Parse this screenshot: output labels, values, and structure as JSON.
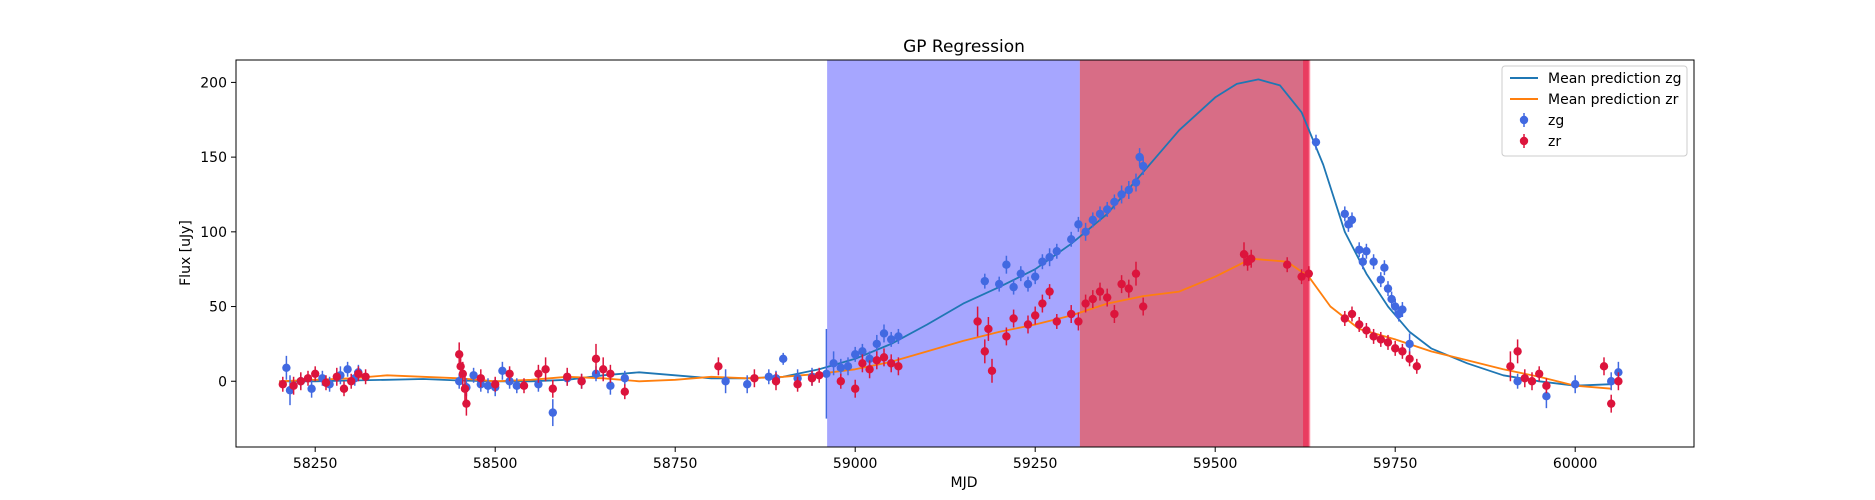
{
  "chart_data": {
    "type": "scatter",
    "title": "GP Regression",
    "xlabel": "MJD",
    "ylabel": "Flux [uJy]",
    "xlim": [
      58140,
      60165
    ],
    "ylim": [
      -44,
      215
    ],
    "xticks": [
      58250,
      58500,
      58750,
      59000,
      59250,
      59500,
      59750,
      60000
    ],
    "yticks": [
      0,
      50,
      100,
      150,
      200
    ],
    "grid": false,
    "legend_position": "top-right",
    "shaded_regions": [
      {
        "x0": 58961,
        "x1": 59312,
        "color": "#0000ff",
        "opacity": 0.35
      },
      {
        "x0": 59312,
        "x1": 59630,
        "color": "#c0143c",
        "opacity": 0.62
      },
      {
        "x0": 59622,
        "x1": 59632,
        "color": "#ff0033",
        "opacity": 0.45
      }
    ],
    "lines": [
      {
        "name": "Mean prediction zg",
        "color": "#1f77b4",
        "x": [
          58200,
          58250,
          58300,
          58350,
          58400,
          58450,
          58500,
          58550,
          58600,
          58650,
          58700,
          58750,
          58800,
          58850,
          58900,
          58950,
          59000,
          59050,
          59100,
          59150,
          59200,
          59250,
          59300,
          59350,
          59400,
          59450,
          59500,
          59530,
          59560,
          59590,
          59620,
          59650,
          59680,
          59710,
          59740,
          59770,
          59800,
          59850,
          59900,
          59950,
          60000,
          60050
        ],
        "y": [
          0,
          0,
          0.5,
          1,
          1.5,
          0.5,
          0,
          0,
          1,
          4,
          6,
          4,
          2,
          2,
          3,
          8,
          15,
          25,
          38,
          52,
          63,
          75,
          92,
          112,
          140,
          168,
          190,
          199,
          202,
          198,
          180,
          145,
          100,
          72,
          50,
          33,
          22,
          12,
          4,
          0,
          -3,
          -2
        ]
      },
      {
        "name": "Mean prediction zr",
        "color": "#ff7f0e",
        "x": [
          58200,
          58250,
          58300,
          58350,
          58400,
          58450,
          58500,
          58550,
          58600,
          58650,
          58700,
          58750,
          58800,
          58850,
          58900,
          58950,
          59000,
          59050,
          59100,
          59150,
          59200,
          59250,
          59300,
          59350,
          59400,
          59450,
          59500,
          59550,
          59600,
          59630,
          59660,
          59700,
          59750,
          59800,
          59850,
          59900,
          59950,
          60000,
          60050
        ],
        "y": [
          0,
          1,
          2,
          4,
          3,
          2,
          0,
          1,
          3,
          2,
          0,
          1,
          3,
          2,
          3,
          5,
          8,
          13,
          20,
          27,
          33,
          38,
          44,
          52,
          57,
          60,
          70,
          82,
          80,
          70,
          50,
          35,
          28,
          20,
          14,
          8,
          3,
          -3,
          -5
        ]
      }
    ],
    "series": [
      {
        "name": "zg",
        "color": "#4169e1",
        "x": [
          58210,
          58215,
          58230,
          58245,
          58260,
          58270,
          58285,
          58295,
          58305,
          58310,
          58450,
          58460,
          58470,
          58480,
          58490,
          58500,
          58510,
          58520,
          58530,
          58560,
          58580,
          58600,
          58620,
          58640,
          58660,
          58680,
          58820,
          58850,
          58880,
          58890,
          58900,
          58920,
          58940,
          58960,
          58970,
          58980,
          58990,
          59000,
          59010,
          59020,
          59030,
          59040,
          59050,
          59060,
          59180,
          59200,
          59210,
          59220,
          59230,
          59240,
          59250,
          59260,
          59270,
          59280,
          59300,
          59310,
          59320,
          59330,
          59340,
          59350,
          59360,
          59370,
          59380,
          59390,
          59395,
          59400,
          59640,
          59680,
          59685,
          59690,
          59700,
          59705,
          59710,
          59720,
          59730,
          59735,
          59740,
          59745,
          59750,
          59755,
          59760,
          59770,
          59920,
          59960,
          60000,
          60050,
          60060
        ],
        "y": [
          9,
          -6,
          0,
          -5,
          2,
          -2,
          4,
          8,
          2,
          6,
          0,
          -4,
          4,
          -2,
          -3,
          -4,
          7,
          0,
          -3,
          -2,
          -21,
          2,
          0,
          5,
          -3,
          2,
          0,
          -2,
          3,
          2,
          15,
          2,
          3,
          5,
          12,
          9,
          10,
          18,
          20,
          15,
          25,
          32,
          28,
          30,
          67,
          65,
          78,
          63,
          72,
          65,
          70,
          80,
          83,
          87,
          95,
          105,
          100,
          108,
          112,
          115,
          120,
          125,
          128,
          133,
          150,
          144,
          160,
          112,
          105,
          108,
          88,
          80,
          87,
          80,
          68,
          76,
          62,
          55,
          50,
          45,
          48,
          25,
          0,
          -10,
          -2,
          0,
          6
        ],
        "err": [
          8,
          10,
          5,
          6,
          5,
          5,
          6,
          5,
          5,
          5,
          5,
          6,
          5,
          5,
          5,
          6,
          6,
          5,
          5,
          5,
          9,
          5,
          5,
          5,
          6,
          5,
          8,
          6,
          5,
          5,
          4,
          6,
          6,
          30,
          8,
          6,
          6,
          5,
          5,
          5,
          6,
          6,
          5,
          5,
          5,
          5,
          6,
          5,
          5,
          5,
          5,
          5,
          6,
          5,
          5,
          5,
          6,
          5,
          5,
          5,
          5,
          6,
          6,
          6,
          6,
          6,
          5,
          5,
          5,
          5,
          5,
          5,
          5,
          5,
          5,
          5,
          5,
          5,
          5,
          5,
          5,
          7,
          5,
          8,
          6,
          6,
          7
        ]
      },
      {
        "name": "zr",
        "color": "#dc143c",
        "x": [
          58205,
          58220,
          58230,
          58240,
          58250,
          58265,
          58280,
          58290,
          58300,
          58310,
          58320,
          58450,
          58452,
          58455,
          58458,
          58460,
          58480,
          58500,
          58520,
          58540,
          58560,
          58570,
          58580,
          58600,
          58620,
          58640,
          58650,
          58660,
          58680,
          58810,
          58860,
          58890,
          58920,
          58940,
          58950,
          58980,
          59000,
          59010,
          59020,
          59030,
          59040,
          59050,
          59060,
          59170,
          59180,
          59185,
          59190,
          59210,
          59220,
          59240,
          59250,
          59260,
          59270,
          59280,
          59300,
          59310,
          59320,
          59330,
          59340,
          59350,
          59360,
          59370,
          59380,
          59390,
          59400,
          59540,
          59545,
          59550,
          59600,
          59620,
          59630,
          59680,
          59690,
          59700,
          59710,
          59720,
          59730,
          59740,
          59750,
          59760,
          59770,
          59780,
          59910,
          59920,
          59930,
          59940,
          59950,
          59960,
          60040,
          60050,
          60060
        ],
        "y": [
          -2,
          -3,
          0,
          2,
          5,
          -1,
          3,
          -5,
          0,
          5,
          3,
          18,
          10,
          5,
          -5,
          -15,
          2,
          -2,
          5,
          -3,
          5,
          8,
          -5,
          3,
          0,
          15,
          8,
          5,
          -7,
          10,
          2,
          0,
          -2,
          2,
          4,
          0,
          -5,
          12,
          8,
          14,
          16,
          12,
          10,
          40,
          20,
          35,
          7,
          30,
          42,
          38,
          44,
          52,
          60,
          40,
          45,
          40,
          52,
          55,
          60,
          56,
          45,
          65,
          62,
          72,
          50,
          85,
          80,
          82,
          78,
          70,
          72,
          42,
          45,
          38,
          34,
          30,
          28,
          26,
          22,
          20,
          15,
          10,
          10,
          20,
          2,
          0,
          5,
          -3,
          10,
          -15,
          0
        ],
        "err": [
          5,
          6,
          6,
          5,
          5,
          5,
          6,
          5,
          5,
          5,
          5,
          8,
          8,
          8,
          8,
          8,
          6,
          5,
          5,
          5,
          6,
          8,
          6,
          6,
          5,
          10,
          8,
          6,
          5,
          6,
          6,
          6,
          5,
          5,
          5,
          5,
          6,
          6,
          6,
          6,
          6,
          6,
          6,
          10,
          8,
          8,
          8,
          6,
          6,
          6,
          6,
          6,
          5,
          5,
          6,
          6,
          6,
          6,
          6,
          6,
          6,
          6,
          6,
          8,
          6,
          8,
          6,
          6,
          5,
          5,
          5,
          5,
          5,
          5,
          5,
          5,
          5,
          5,
          5,
          5,
          5,
          5,
          10,
          8,
          6,
          6,
          5,
          5,
          6,
          6,
          6
        ]
      }
    ]
  }
}
